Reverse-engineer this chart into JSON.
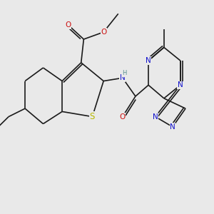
{
  "background_color": "#e9e9e9",
  "bond_color": "#1a1a1a",
  "bond_width": 1.2,
  "atom_colors": {
    "N": "#1010cc",
    "O": "#cc1010",
    "S": "#b8b800",
    "H": "#5a9090"
  },
  "font_size": 7.5,
  "fig_width": 3.0,
  "fig_height": 3.0,
  "dpi": 100
}
